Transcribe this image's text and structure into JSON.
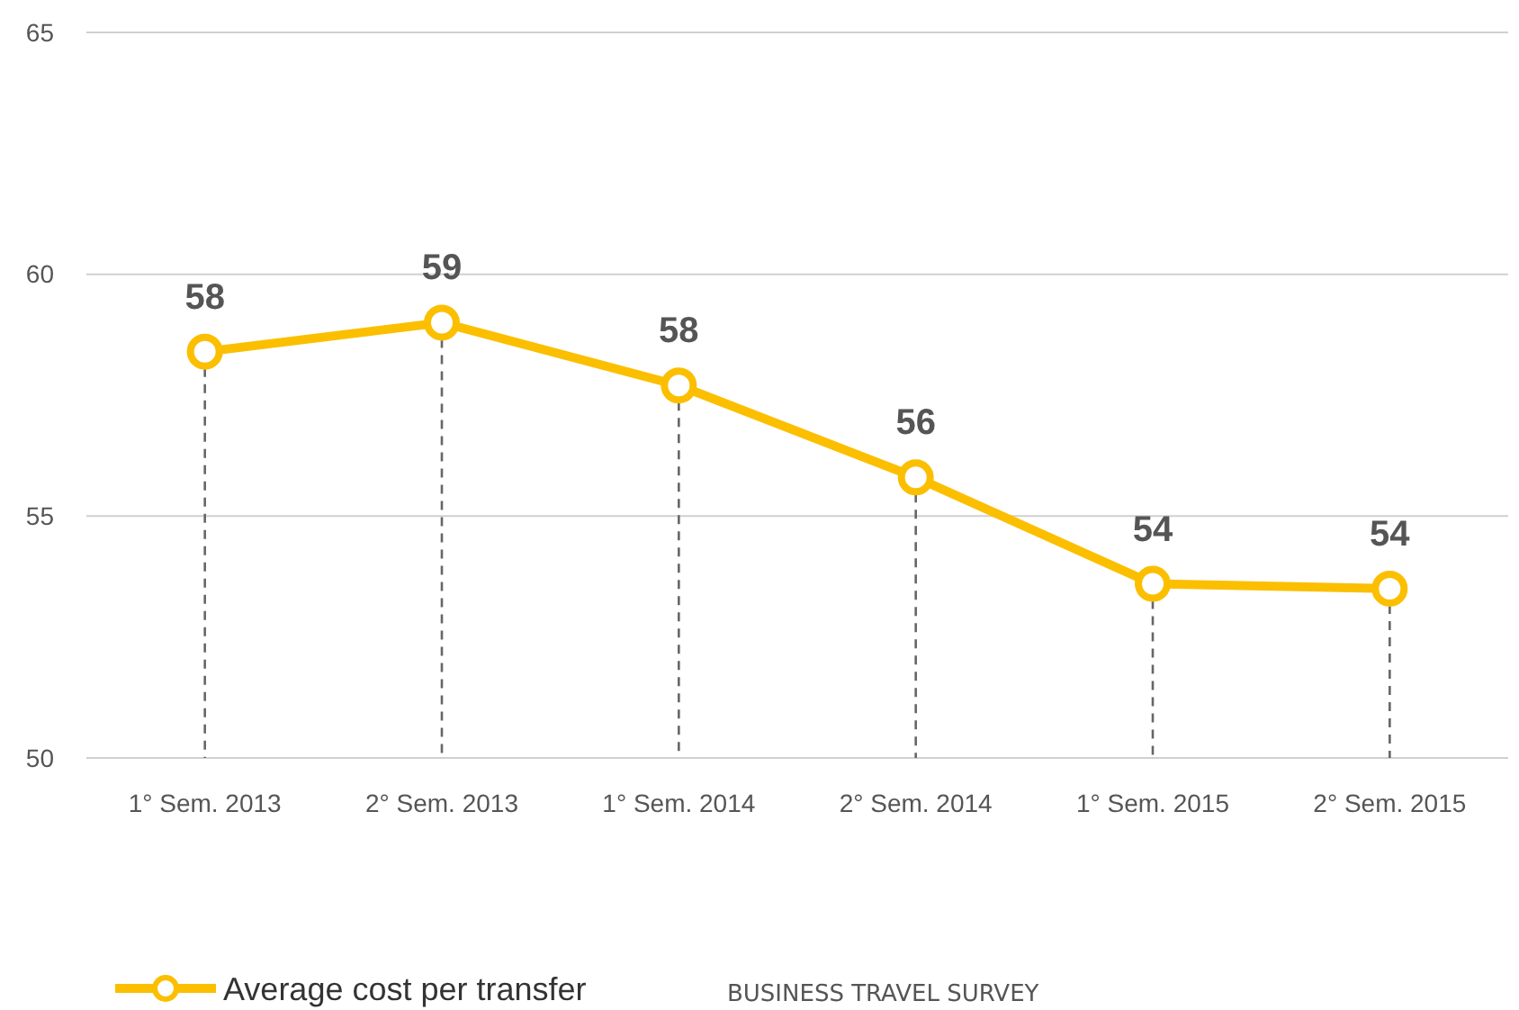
{
  "chart_data": {
    "type": "line",
    "categories": [
      "1° Sem. 2013",
      "2° Sem. 2013",
      "1° Sem. 2014",
      "2° Sem. 2014",
      "1° Sem. 2015",
      "2° Sem. 2015"
    ],
    "series": [
      {
        "name": "Average cost per transfer",
        "color": "#fbbf00",
        "values": [
          58.4,
          59.0,
          57.7,
          55.8,
          53.6,
          53.5
        ],
        "value_labels": [
          "58",
          "59",
          "58",
          "56",
          "54",
          "54"
        ]
      }
    ],
    "ylim": [
      50,
      65
    ],
    "yticks": [
      50,
      55,
      60,
      65
    ],
    "grid": "y",
    "legend": "bottom left",
    "marker": "circle",
    "line_style": "solid",
    "annotations": [
      "BUSINESS TRAVEL SURVEY"
    ]
  }
}
